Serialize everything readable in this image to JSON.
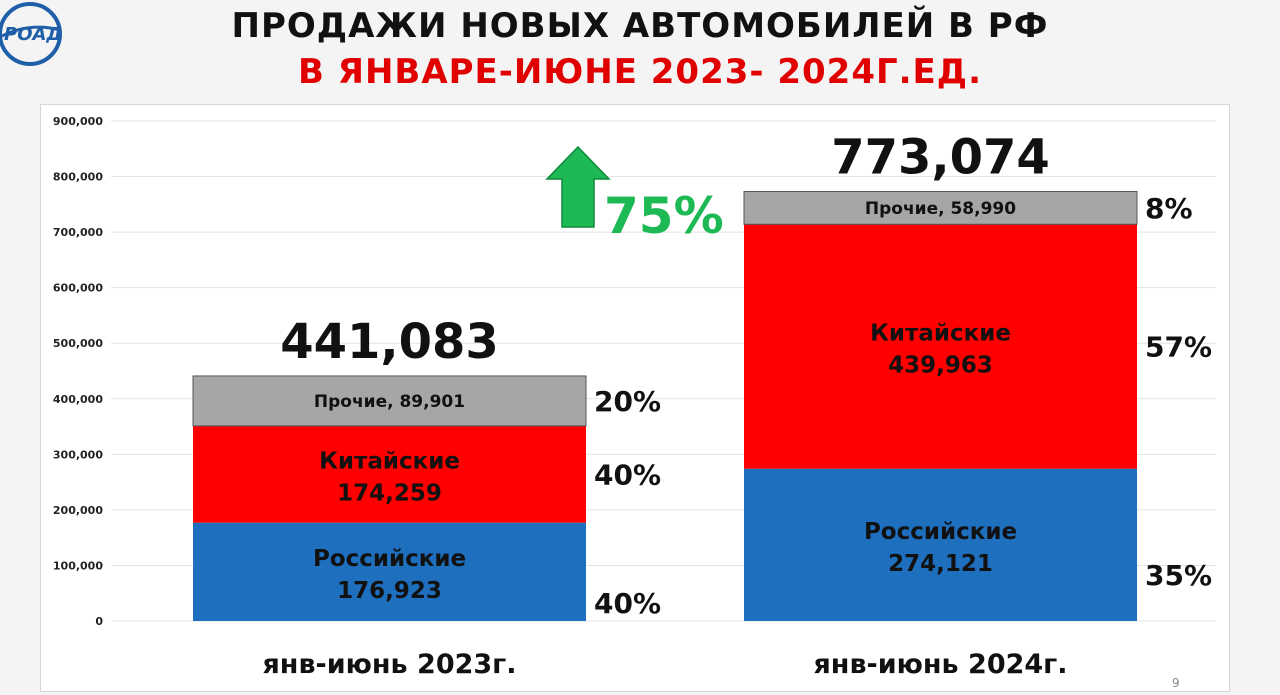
{
  "header": {
    "logo_text": "РОАД",
    "title_line1": "ПРОДАЖИ НОВЫХ АВТОМОБИЛЕЙ В РФ",
    "title_line2": "В ЯНВАРЕ-ИЮНЕ 2023- 2024Г.ЕД."
  },
  "slide_number": "9",
  "colors": {
    "russian": "#1f6fbf",
    "chinese": "#ff0000",
    "other": "#a6a6a6",
    "growth": "#1db954",
    "title_red": "#e00000"
  },
  "chart_data": {
    "type": "bar",
    "stacked": true,
    "categories": [
      "янв-июнь 2023г.",
      "янв-июнь 2024г."
    ],
    "ylim": [
      0,
      900000
    ],
    "y_ticks": [
      "0",
      "100,000",
      "200,000",
      "300,000",
      "400,000",
      "500,000",
      "600,000",
      "700,000",
      "800,000",
      "900,000"
    ],
    "grid": true,
    "series": [
      {
        "name": "Российские",
        "values": [
          176923,
          274121
        ],
        "value_labels": [
          "176,923",
          "274,121"
        ],
        "share_labels": [
          "40%",
          "35%"
        ]
      },
      {
        "name": "Китайские",
        "values": [
          174259,
          439963
        ],
        "value_labels": [
          "174,259",
          "439,963"
        ],
        "share_labels": [
          "40%",
          "57%"
        ]
      },
      {
        "name": "Прочие",
        "values": [
          89901,
          58990
        ],
        "value_labels": [
          "Прочие, 89,901",
          "Прочие, 58,990"
        ],
        "share_labels": [
          "20%",
          "8%"
        ]
      }
    ],
    "totals": [
      441083,
      773074
    ],
    "total_labels": [
      "441,083",
      "773,074"
    ],
    "growth_label": "75%"
  }
}
